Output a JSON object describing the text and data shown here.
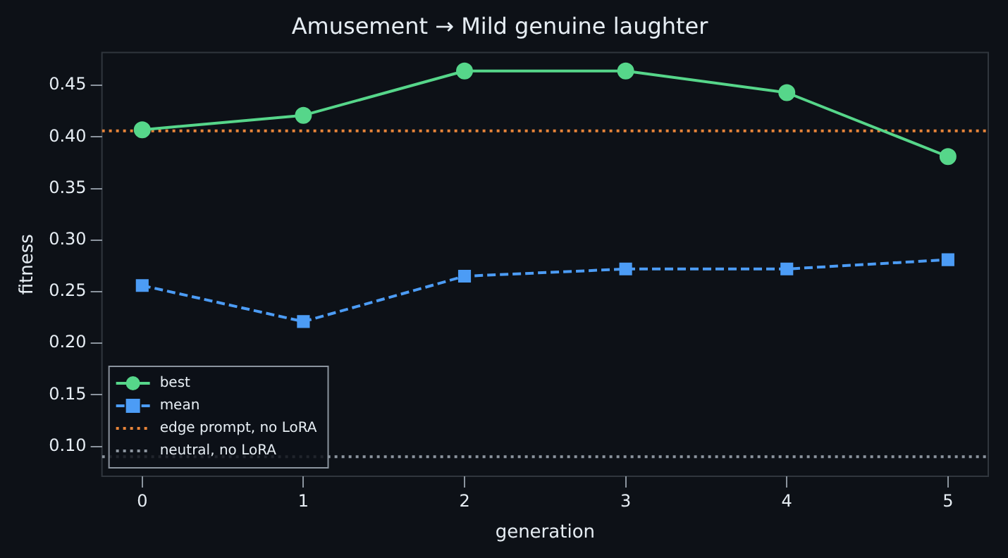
{
  "chart_data": {
    "type": "line",
    "title": "Amusement → Mild genuine laughter",
    "xlabel": "generation",
    "ylabel": "fitness",
    "x": [
      0,
      1,
      2,
      3,
      4,
      5
    ],
    "series": [
      {
        "name": "best",
        "color": "#56d68a",
        "values": [
          0.407,
          0.421,
          0.464,
          0.464,
          0.443,
          0.381
        ],
        "marker": "circle",
        "line_style": "solid"
      },
      {
        "name": "mean",
        "color": "#4c9cf5",
        "values": [
          0.256,
          0.221,
          0.265,
          0.272,
          0.272,
          0.281
        ],
        "marker": "square",
        "line_style": "dashed"
      }
    ],
    "ref_lines": [
      {
        "axis": "y",
        "value": 0.406,
        "label": "edge prompt, no LoRA",
        "color": "#e8853a",
        "line_style": "dotted"
      },
      {
        "axis": "y",
        "value": 0.09,
        "label": "neutral, no LoRA",
        "color": "#8b949e",
        "line_style": "dotted"
      }
    ],
    "xlim": [
      -0.25,
      5.25
    ],
    "xticks": [
      0,
      1,
      2,
      3,
      4,
      5
    ],
    "ylim": [
      0.071,
      0.482
    ],
    "yticks": [
      {
        "value": 0.1,
        "label": "0.10"
      },
      {
        "value": 0.15,
        "label": "0.15"
      },
      {
        "value": 0.2,
        "label": "0.20"
      },
      {
        "value": 0.25,
        "label": "0.25"
      },
      {
        "value": 0.3,
        "label": "0.30"
      },
      {
        "value": 0.35,
        "label": "0.35"
      },
      {
        "value": 0.4,
        "label": "0.40"
      },
      {
        "value": 0.45,
        "label": "0.45"
      }
    ],
    "grid": false,
    "legend": "bottom left"
  }
}
